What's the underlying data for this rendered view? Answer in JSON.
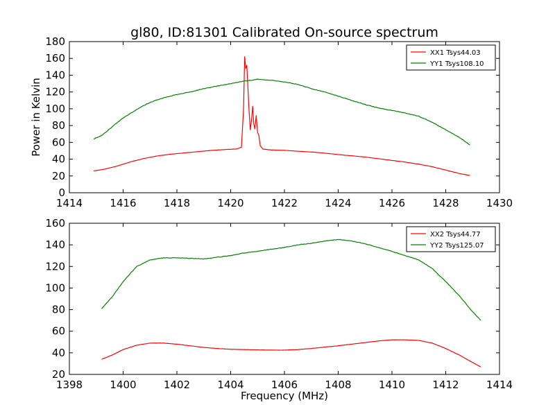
{
  "figure": {
    "title": "gl80, ID:81301 Calibrated On-source spectrum",
    "ylabel": "Power in Kelvin",
    "xlabel": "Frequency (MHz)"
  },
  "chart_data": [
    {
      "type": "line",
      "title": "gl80, ID:81301 Calibrated On-source spectrum",
      "ylabel": "Power in Kelvin",
      "xlabel": "",
      "xlim": [
        1414,
        1430
      ],
      "ylim": [
        0,
        180
      ],
      "xticks": [
        1414,
        1416,
        1418,
        1420,
        1422,
        1424,
        1426,
        1428,
        1430
      ],
      "yticks": [
        0,
        20,
        40,
        60,
        80,
        100,
        120,
        140,
        160,
        180
      ],
      "grid": false,
      "legend_position": "top-right",
      "series": [
        {
          "name": "XX1 Tsys44.03",
          "color": "#ff0000",
          "points": [
            [
              1414.9,
              26
            ],
            [
              1415.3,
              28
            ],
            [
              1415.8,
              32
            ],
            [
              1416.3,
              37
            ],
            [
              1416.8,
              41
            ],
            [
              1417.3,
              44
            ],
            [
              1417.8,
              46
            ],
            [
              1418.3,
              47.5
            ],
            [
              1418.8,
              49
            ],
            [
              1419.3,
              50.5
            ],
            [
              1419.8,
              51.5
            ],
            [
              1420.2,
              52
            ],
            [
              1420.4,
              54
            ],
            [
              1420.48,
              100
            ],
            [
              1420.52,
              162
            ],
            [
              1420.56,
              148
            ],
            [
              1420.6,
              152
            ],
            [
              1420.68,
              100
            ],
            [
              1420.73,
              75
            ],
            [
              1420.78,
              88
            ],
            [
              1420.82,
              103
            ],
            [
              1420.86,
              82
            ],
            [
              1420.9,
              76
            ],
            [
              1420.95,
              92
            ],
            [
              1421.0,
              72
            ],
            [
              1421.05,
              68
            ],
            [
              1421.1,
              56
            ],
            [
              1421.2,
              52
            ],
            [
              1421.5,
              51
            ],
            [
              1422.0,
              50.5
            ],
            [
              1422.5,
              49.5
            ],
            [
              1423.0,
              48.5
            ],
            [
              1423.5,
              47.2
            ],
            [
              1424.0,
              45.5
            ],
            [
              1424.5,
              44
            ],
            [
              1425.0,
              42.5
            ],
            [
              1425.5,
              40.5
            ],
            [
              1426.0,
              38.5
            ],
            [
              1426.5,
              36.5
            ],
            [
              1427.0,
              34
            ],
            [
              1427.5,
              31
            ],
            [
              1428.0,
              27
            ],
            [
              1428.5,
              23
            ],
            [
              1428.9,
              20.5
            ]
          ]
        },
        {
          "name": "YY1 Tsys108.10",
          "color": "#008000",
          "points": [
            [
              1414.9,
              64
            ],
            [
              1415.2,
              68
            ],
            [
              1415.5,
              76
            ],
            [
              1415.8,
              84
            ],
            [
              1416.0,
              89
            ],
            [
              1416.3,
              95
            ],
            [
              1416.6,
              101
            ],
            [
              1416.9,
              106
            ],
            [
              1417.2,
              110
            ],
            [
              1417.5,
              113
            ],
            [
              1418.0,
              117
            ],
            [
              1418.5,
              120
            ],
            [
              1419.0,
              124
            ],
            [
              1419.5,
              127
            ],
            [
              1420.0,
              130
            ],
            [
              1420.5,
              133
            ],
            [
              1421.0,
              135
            ],
            [
              1421.5,
              134
            ],
            [
              1422.0,
              132
            ],
            [
              1422.5,
              129
            ],
            [
              1423.0,
              124
            ],
            [
              1423.5,
              120
            ],
            [
              1424.0,
              115
            ],
            [
              1424.5,
              110
            ],
            [
              1425.0,
              105
            ],
            [
              1425.5,
              101
            ],
            [
              1426.0,
              98
            ],
            [
              1426.5,
              95
            ],
            [
              1427.0,
              91
            ],
            [
              1427.5,
              84
            ],
            [
              1428.0,
              75
            ],
            [
              1428.5,
              66
            ],
            [
              1428.9,
              57
            ]
          ]
        }
      ]
    },
    {
      "type": "line",
      "title": "",
      "xlabel": "Frequency (MHz)",
      "ylabel": "",
      "xlim": [
        1398,
        1414
      ],
      "ylim": [
        20,
        160
      ],
      "xticks": [
        1398,
        1400,
        1402,
        1404,
        1406,
        1408,
        1410,
        1412,
        1414
      ],
      "yticks": [
        20,
        40,
        60,
        80,
        100,
        120,
        140,
        160
      ],
      "grid": false,
      "legend_position": "top-right",
      "series": [
        {
          "name": "XX2 Tsys44.77",
          "color": "#ff0000",
          "points": [
            [
              1399.2,
              34
            ],
            [
              1399.6,
              38
            ],
            [
              1400.0,
              43
            ],
            [
              1400.5,
              47
            ],
            [
              1401.0,
              49
            ],
            [
              1401.5,
              49
            ],
            [
              1402.0,
              48
            ],
            [
              1402.5,
              46.5
            ],
            [
              1403.0,
              45
            ],
            [
              1403.5,
              44
            ],
            [
              1404.0,
              43.3
            ],
            [
              1404.5,
              43
            ],
            [
              1405.0,
              42.7
            ],
            [
              1405.5,
              42.5
            ],
            [
              1406.0,
              42.5
            ],
            [
              1406.5,
              43
            ],
            [
              1407.0,
              44
            ],
            [
              1407.5,
              45.3
            ],
            [
              1408.0,
              46.5
            ],
            [
              1408.5,
              48
            ],
            [
              1409.0,
              49.5
            ],
            [
              1409.5,
              51
            ],
            [
              1410.0,
              52
            ],
            [
              1410.5,
              52
            ],
            [
              1411.0,
              51.5
            ],
            [
              1411.5,
              49
            ],
            [
              1412.0,
              44
            ],
            [
              1412.5,
              38
            ],
            [
              1413.0,
              31
            ],
            [
              1413.3,
              27
            ]
          ]
        },
        {
          "name": "YY2 Tsys125.07",
          "color": "#008000",
          "points": [
            [
              1399.2,
              81
            ],
            [
              1399.6,
              92
            ],
            [
              1400.0,
              106
            ],
            [
              1400.5,
              120
            ],
            [
              1401.0,
              126
            ],
            [
              1401.5,
              128
            ],
            [
              1402.0,
              128
            ],
            [
              1402.5,
              127.5
            ],
            [
              1403.0,
              127
            ],
            [
              1403.5,
              128.5
            ],
            [
              1404.0,
              130
            ],
            [
              1404.5,
              132.5
            ],
            [
              1405.0,
              134
            ],
            [
              1405.5,
              136
            ],
            [
              1406.0,
              137.5
            ],
            [
              1406.5,
              140
            ],
            [
              1407.0,
              141.5
            ],
            [
              1407.5,
              143.5
            ],
            [
              1408.0,
              145
            ],
            [
              1408.5,
              143.5
            ],
            [
              1409.0,
              141
            ],
            [
              1409.5,
              137.5
            ],
            [
              1410.0,
              134
            ],
            [
              1410.5,
              130
            ],
            [
              1411.0,
              126
            ],
            [
              1411.5,
              118
            ],
            [
              1412.0,
              106
            ],
            [
              1412.5,
              93
            ],
            [
              1413.0,
              78
            ],
            [
              1413.3,
              70
            ]
          ]
        }
      ]
    }
  ]
}
